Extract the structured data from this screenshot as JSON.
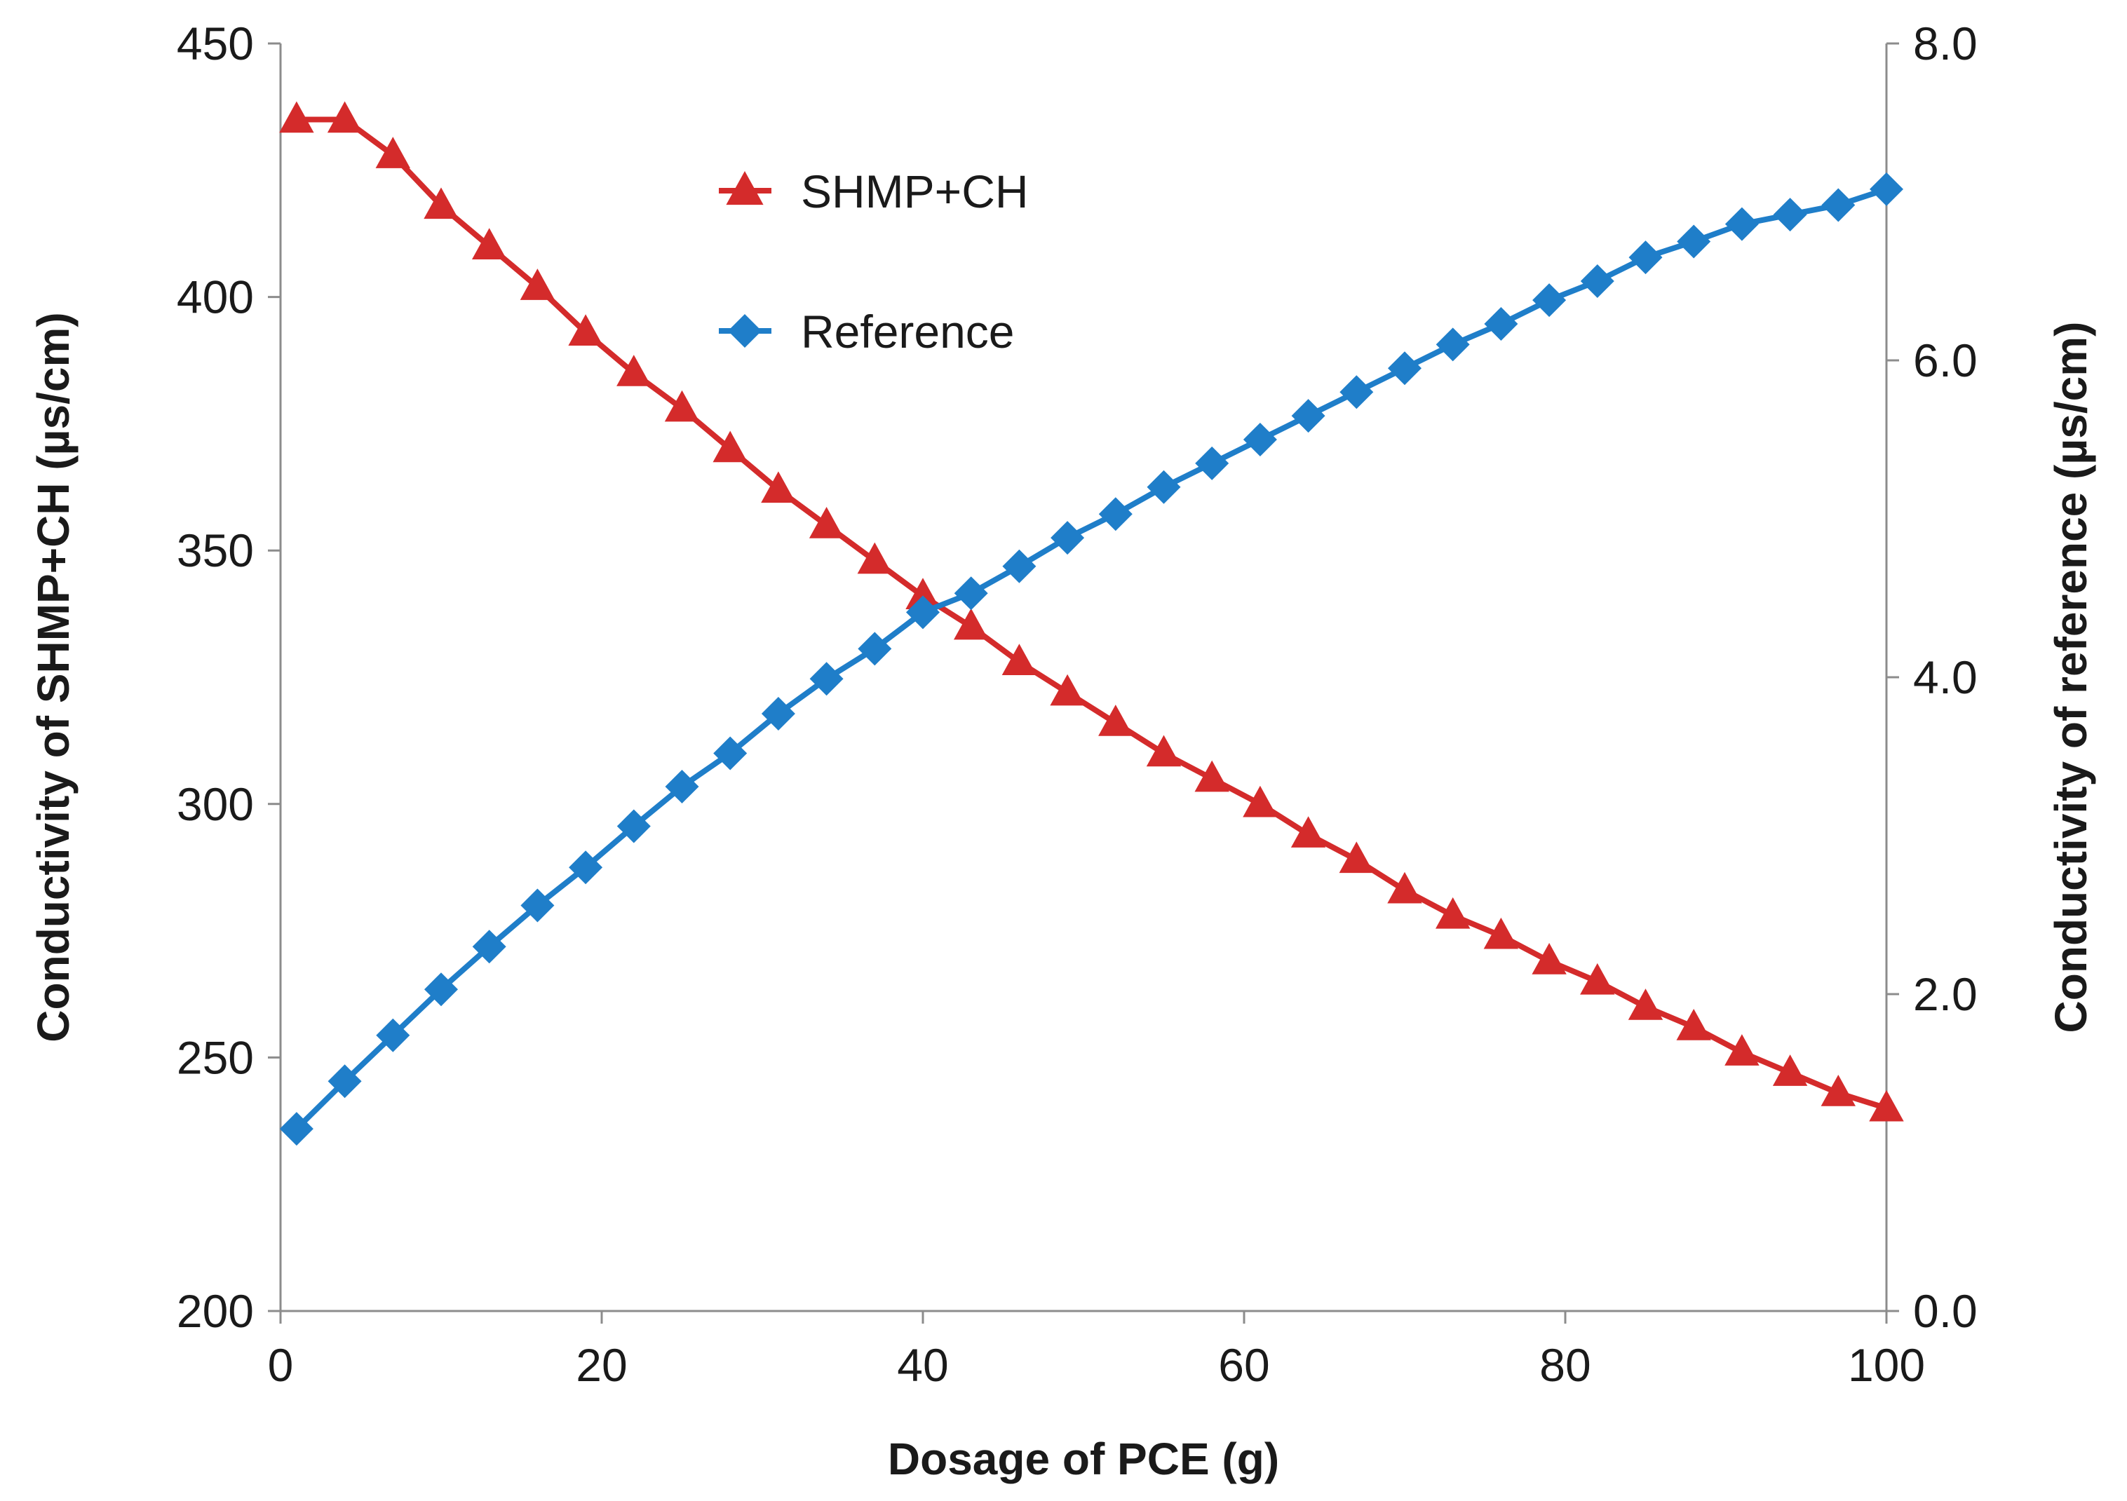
{
  "chart_data": {
    "type": "line",
    "title": "",
    "xlabel": "Dosage of PCE (g)",
    "ylabel_left": "Conductivity of SHMP+CH (µs/cm)",
    "ylabel_right": "Conductivity of reference (µs/cm)",
    "xlim": [
      0,
      100
    ],
    "ylim_left": [
      200,
      450
    ],
    "ylim_right": [
      0.0,
      8.0
    ],
    "x_ticks": [
      "0",
      "20",
      "40",
      "60",
      "80",
      "100"
    ],
    "y_left_ticks": [
      "200",
      "250",
      "300",
      "350",
      "400",
      "450"
    ],
    "y_right_ticks": [
      "0.0",
      "2.0",
      "4.0",
      "6.0",
      "8.0"
    ],
    "grid": false,
    "legend_position": "top-center",
    "x": [
      1,
      4,
      7,
      10,
      13,
      16,
      19,
      22,
      25,
      28,
      31,
      34,
      37,
      40,
      43,
      46,
      49,
      52,
      55,
      58,
      61,
      64,
      67,
      70,
      73,
      76,
      79,
      82,
      85,
      88,
      91,
      94,
      97,
      100
    ],
    "series": [
      {
        "name": "SHMP+CH",
        "axis": "left",
        "color": "#d42b2b",
        "marker": "triangle",
        "values": [
          435,
          435,
          428,
          418,
          410,
          402,
          393,
          385,
          378,
          370,
          362,
          355,
          348,
          341,
          335,
          328,
          322,
          316,
          310,
          305,
          300,
          294,
          289,
          283,
          278,
          274,
          269,
          265,
          260,
          256,
          251,
          247,
          243,
          240
        ]
      },
      {
        "name": "Reference",
        "axis": "right",
        "color": "#1f7ec9",
        "marker": "diamond",
        "values": [
          1.15,
          1.45,
          1.74,
          2.03,
          2.3,
          2.56,
          2.8,
          3.06,
          3.31,
          3.52,
          3.77,
          3.99,
          4.18,
          4.41,
          4.53,
          4.7,
          4.88,
          5.03,
          5.2,
          5.35,
          5.5,
          5.65,
          5.8,
          5.95,
          6.1,
          6.23,
          6.38,
          6.5,
          6.65,
          6.75,
          6.86,
          6.92,
          6.98,
          7.08
        ]
      }
    ]
  }
}
